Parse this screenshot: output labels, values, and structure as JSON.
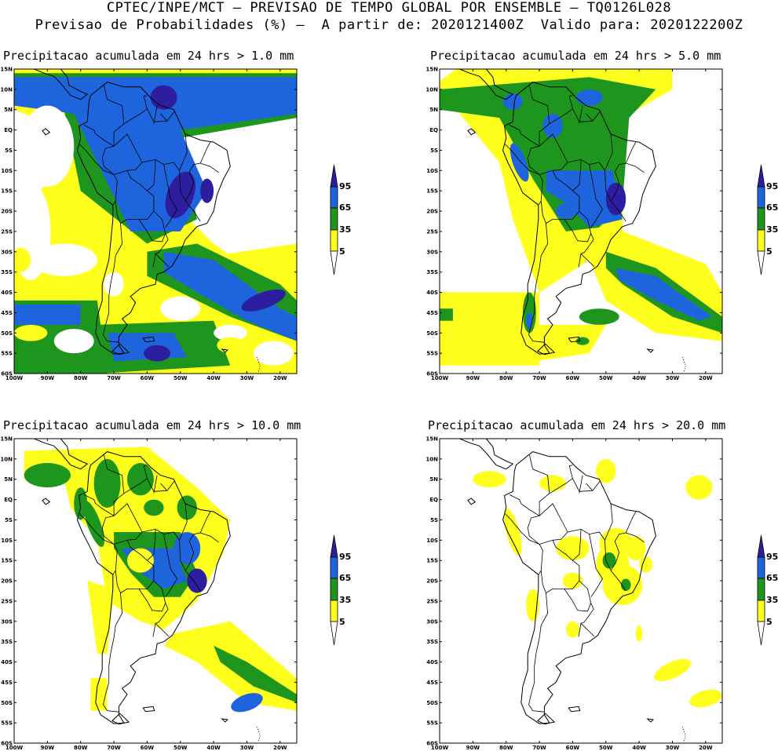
{
  "header": {
    "line1": "CPTEC/INPE/MCT — PREVISAO DE TEMPO GLOBAL POR ENSEMBLE — TQ0126L028",
    "line2": "Previsao de Probabilidades (%) —  A partir de: 2020121400Z  Valido para: 2020122200Z"
  },
  "colors": {
    "white": "#ffffff",
    "yellow": "#ffff1e",
    "green": "#1e961e",
    "blue": "#1e64dc",
    "purple": "#2d1ea0"
  },
  "axes": {
    "lat_labels": [
      "15N",
      "10N",
      "5N",
      "EQ",
      "5S",
      "10S",
      "15S",
      "20S",
      "25S",
      "30S",
      "35S",
      "40S",
      "45S",
      "50S",
      "55S",
      "60S"
    ],
    "lon_labels": [
      "100W",
      "90W",
      "80W",
      "70W",
      "60W",
      "50W",
      "40W",
      "30W",
      "20W"
    ]
  },
  "legend_labels": [
    "95",
    "65",
    "35",
    "5"
  ],
  "panels": [
    {
      "title": "Precipitacao acumulada em 24 hrs > 1.0 mm"
    },
    {
      "title": "Precipitacao acumulada em 24 hrs > 5.0 mm"
    },
    {
      "title": "Precipitacao acumulada em 24 hrs > 10.0 mm"
    },
    {
      "title": "Precipitacao acumulada em 24 hrs > 20.0 mm"
    }
  ]
}
